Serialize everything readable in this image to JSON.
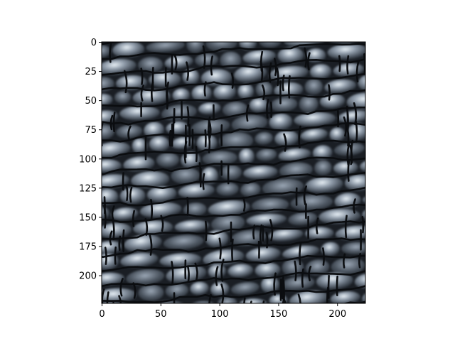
{
  "image": {
    "description_icon": "cracked-earth-texture",
    "palette": {
      "crack": "#0e1014",
      "cell_dark": "#2a3038",
      "cell_mid": "#6b7886",
      "cell_light": "#c9d6e2",
      "highlight": "#f4f8fb"
    }
  },
  "axes": {
    "x_ticks": [
      0,
      50,
      100,
      150,
      200
    ],
    "y_ticks": [
      0,
      25,
      50,
      75,
      100,
      125,
      150,
      175,
      200
    ],
    "x_range": [
      0,
      224
    ],
    "y_range": [
      0,
      224
    ],
    "y_inverted": true
  }
}
